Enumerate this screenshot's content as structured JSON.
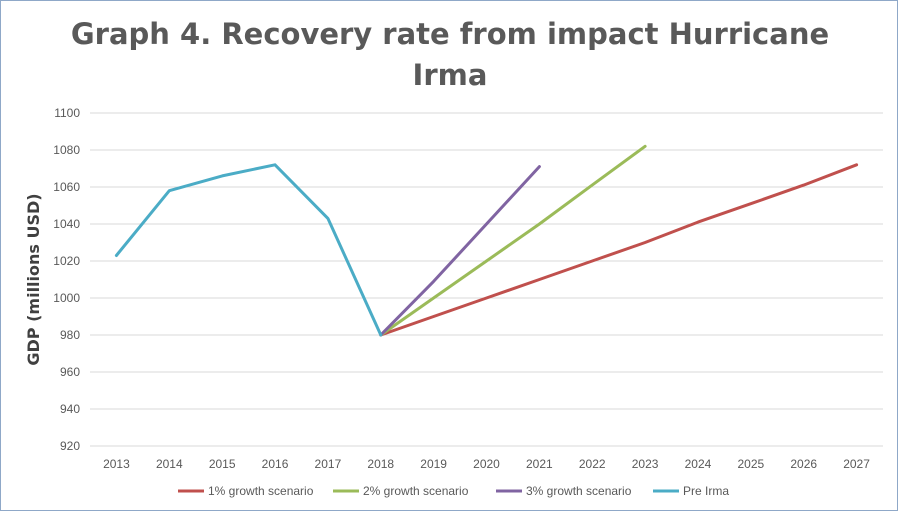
{
  "chart_data": {
    "type": "line",
    "title": "Graph 4. Recovery rate from impact Hurricane Irma",
    "xlabel": "",
    "ylabel": "GDP (millions USD)",
    "ylim": [
      920,
      1100
    ],
    "yticks": [
      920,
      940,
      960,
      980,
      1000,
      1020,
      1040,
      1060,
      1080,
      1100
    ],
    "categories": [
      "2013",
      "2014",
      "2015",
      "2016",
      "2017",
      "2018",
      "2019",
      "2020",
      "2021",
      "2022",
      "2023",
      "2024",
      "2025",
      "2026",
      "2027"
    ],
    "grid": "horizontal",
    "legend_position": "bottom",
    "series": [
      {
        "name": "1% growth scenario",
        "color": "#c0504d",
        "values": [
          null,
          null,
          null,
          null,
          null,
          980,
          990,
          1000,
          1010,
          1020,
          1030,
          1041,
          1051,
          1061,
          1072
        ]
      },
      {
        "name": "2% growth scenario",
        "color": "#9bbb59",
        "values": [
          null,
          null,
          null,
          null,
          null,
          980,
          1000,
          1020,
          1040,
          1061,
          1082,
          null,
          null,
          null,
          null
        ]
      },
      {
        "name": "3% growth scenario",
        "color": "#8064a2",
        "values": [
          null,
          null,
          null,
          null,
          null,
          980,
          1009,
          1040,
          1071,
          null,
          null,
          null,
          null,
          null,
          null
        ]
      },
      {
        "name": "Pre Irma",
        "color": "#4bacc6",
        "values": [
          1023,
          1058,
          1066,
          1072,
          1043,
          980,
          null,
          null,
          null,
          null,
          null,
          null,
          null,
          null,
          null
        ]
      }
    ]
  }
}
